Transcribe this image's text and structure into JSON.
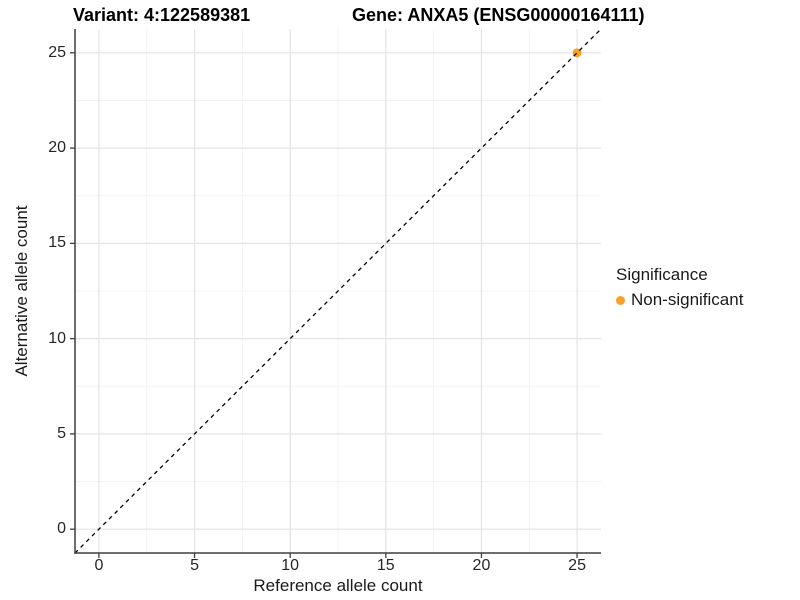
{
  "colors": {
    "point_orange": "#F9A02B",
    "axis_line": "#3f3f3f",
    "grid_major": "#e3e3e3",
    "grid_minor": "#f0f0f0",
    "tick_text": "#262626",
    "identity_line": "#000000",
    "background": "#ffffff"
  },
  "chart_data": {
    "type": "scatter",
    "title_variant": "Variant: 4:122589381",
    "title_gene": "Gene: ANXA5 (ENSG00000164111)",
    "xlabel": "Reference allele count",
    "ylabel": "Alternative allele count",
    "xlim": [
      -1.25,
      26.25
    ],
    "ylim": [
      -1.25,
      26.25
    ],
    "x_ticks": [
      0,
      5,
      10,
      15,
      20,
      25
    ],
    "y_ticks": [
      0,
      5,
      10,
      15,
      20,
      25
    ],
    "minor_gridlines": [
      2.5,
      7.5,
      12.5,
      17.5,
      22.5
    ],
    "grid": true,
    "points": [
      {
        "x": 25,
        "y": 25,
        "series": "Non-significant"
      }
    ],
    "abline": {
      "slope": 1,
      "intercept": 0,
      "style": "dashed"
    },
    "legend": {
      "title": "Significance",
      "position": "right",
      "entries": [
        {
          "label": "Non-significant",
          "color": "#F9A02B"
        }
      ]
    }
  }
}
